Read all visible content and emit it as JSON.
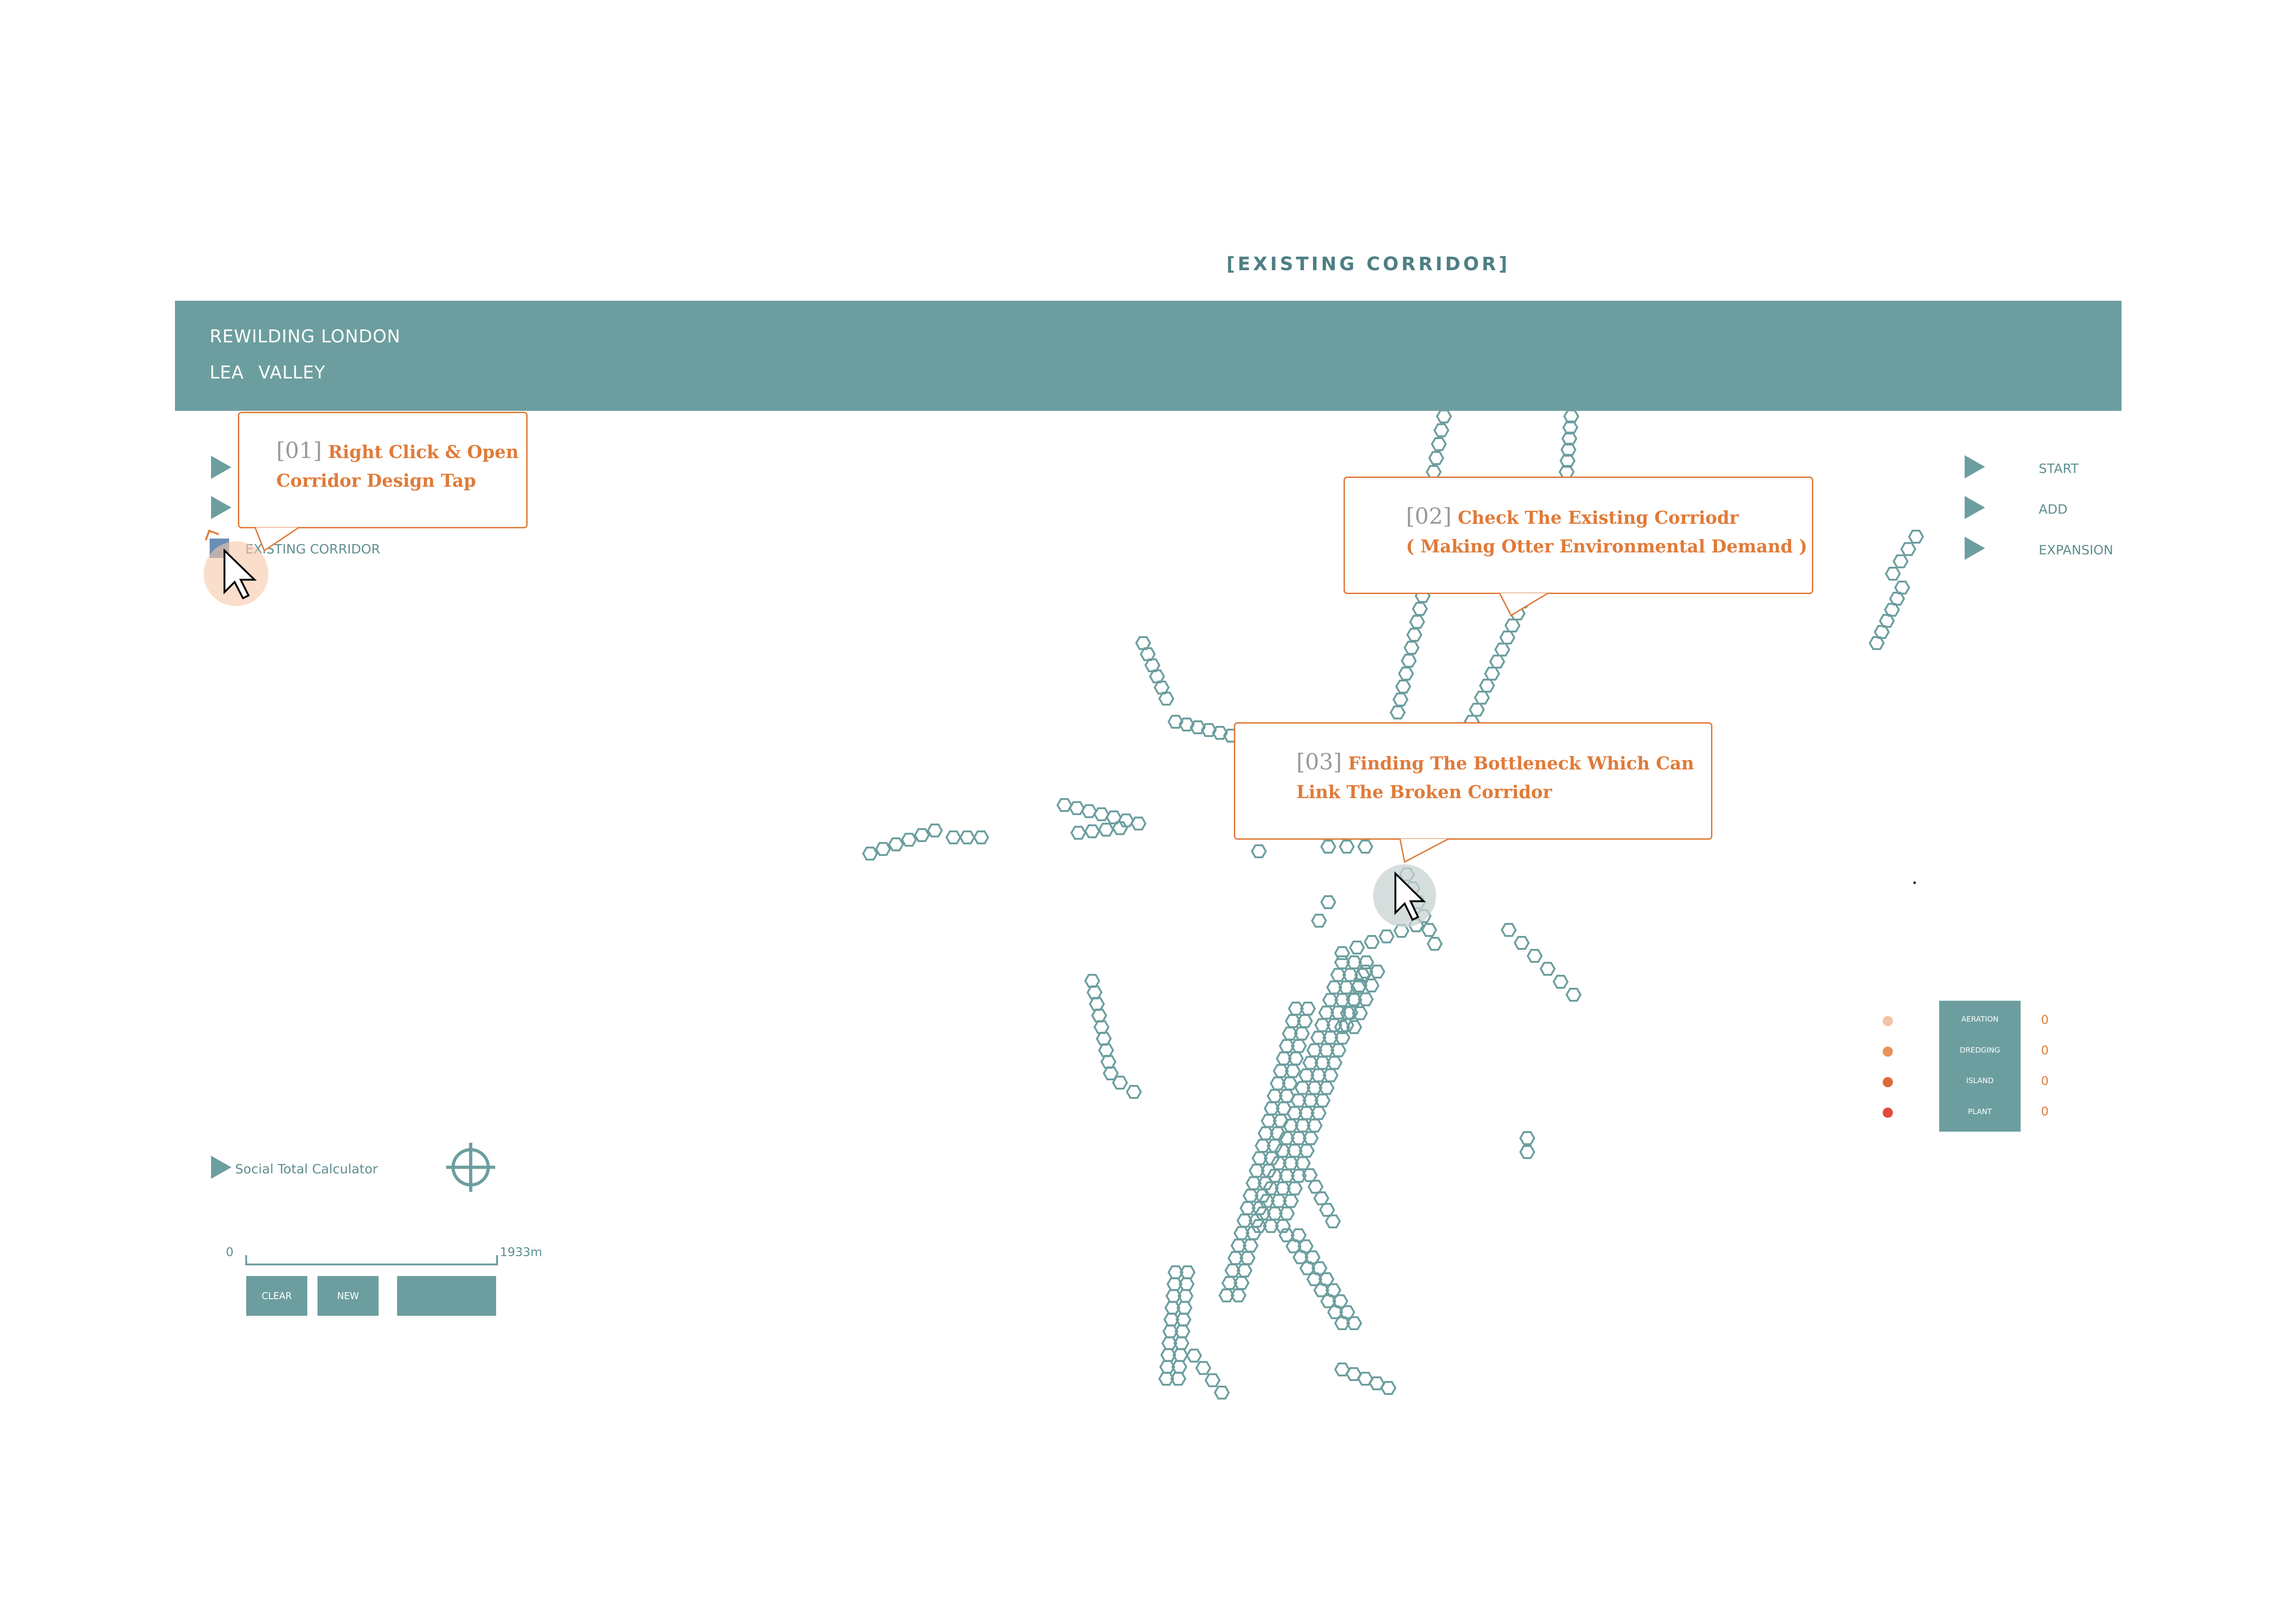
{
  "page": {
    "heading": "[EXISTING CORRIDOR]"
  },
  "header": {
    "title": "REWILDING LONDON",
    "subtitle": "LEA VALLEY"
  },
  "left_panel": {
    "menu_items": [
      {
        "label": ""
      },
      {
        "label": ""
      },
      {
        "label": "EXISTING CORRIDOR"
      }
    ],
    "calculator_label": "Social Total Calculator",
    "scale": {
      "start": "0",
      "end": "1933m"
    },
    "buttons": {
      "clear": "CLEAR",
      "new": "NEW",
      "extra": ""
    }
  },
  "right_menu": {
    "items": [
      {
        "label": "START"
      },
      {
        "label": "ADD"
      },
      {
        "label": "EXPANSION"
      }
    ]
  },
  "legend": {
    "items": [
      {
        "label": "AERATION",
        "value": "0",
        "color": "#f2c4a6"
      },
      {
        "label": "DREDGING",
        "value": "0",
        "color": "#e9925a"
      },
      {
        "label": "ISLAND",
        "value": "0",
        "color": "#e06a3c"
      },
      {
        "label": "PLANT",
        "value": "0",
        "color": "#e04b3a"
      }
    ]
  },
  "callouts": [
    {
      "num": "[01]",
      "line1": "Right Click & Open",
      "line2": "Corridor Design Tap"
    },
    {
      "num": "[02]",
      "line1": "Check The Existing Corriodr",
      "line2": "( Making Otter Environmental Demand )"
    },
    {
      "num": "[03]",
      "line1": "Finding The Bottleneck Which Can",
      "line2": "Link The Broken Corridor"
    }
  ],
  "colors": {
    "accent": "#6d9e9f",
    "callout": "#e07b39",
    "hex": "#6d9e9f"
  }
}
